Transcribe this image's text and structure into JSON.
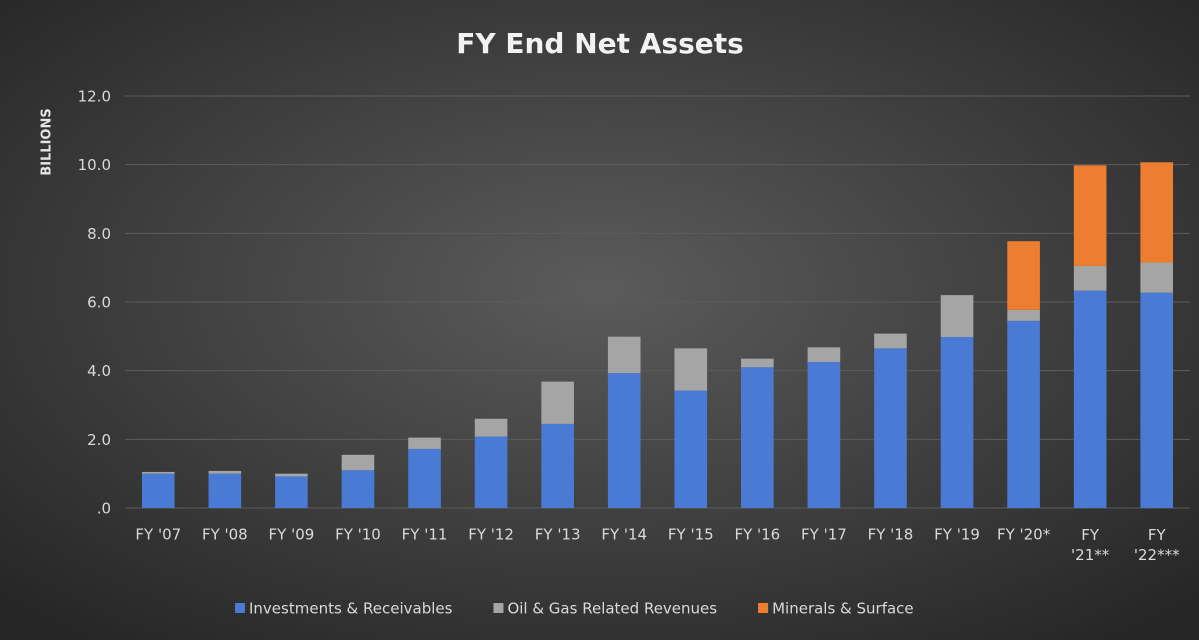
{
  "chart_data": {
    "type": "bar",
    "stacked": true,
    "title": "FY End Net Assets",
    "y_label": "BILLIONS",
    "categories": [
      "FY '07",
      "FY '08",
      "FY '09",
      "FY '10",
      "FY '11",
      "FY '12",
      "FY '13",
      "FY '14",
      "FY '15",
      "FY '16",
      "FY '17",
      "FY '18",
      "FY '19",
      "FY '20*",
      "FY '21**",
      "FY '22***"
    ],
    "series": [
      {
        "name": "Investments & Receivables",
        "color": "#4a7bd4",
        "values": [
          1.0,
          1.0,
          0.92,
          1.1,
          1.72,
          2.08,
          2.45,
          3.93,
          3.42,
          4.1,
          4.25,
          4.65,
          4.98,
          5.45,
          6.33,
          6.27
        ]
      },
      {
        "name": "Oil & Gas Related Revenues",
        "color": "#a5a5a5",
        "values": [
          0.05,
          0.08,
          0.08,
          0.45,
          0.33,
          0.52,
          1.23,
          1.06,
          1.23,
          0.25,
          0.43,
          0.43,
          1.22,
          0.32,
          0.72,
          0.88
        ]
      },
      {
        "name": "Minerals & Surface",
        "color": "#ed7d31",
        "values": [
          0,
          0,
          0,
          0,
          0,
          0,
          0,
          0,
          0,
          0,
          0,
          0,
          0,
          2.0,
          2.93,
          2.92
        ]
      }
    ],
    "ylim": [
      0,
      12
    ],
    "yticks": [
      {
        "value": 0,
        "label": ".0"
      },
      {
        "value": 2,
        "label": "2.0"
      },
      {
        "value": 4,
        "label": "4.0"
      },
      {
        "value": 6,
        "label": "6.0"
      },
      {
        "value": 8,
        "label": "8.0"
      },
      {
        "value": 10,
        "label": "10.0"
      },
      {
        "value": 12,
        "label": "12.0"
      }
    ],
    "grid": true,
    "legend": "bottom"
  }
}
